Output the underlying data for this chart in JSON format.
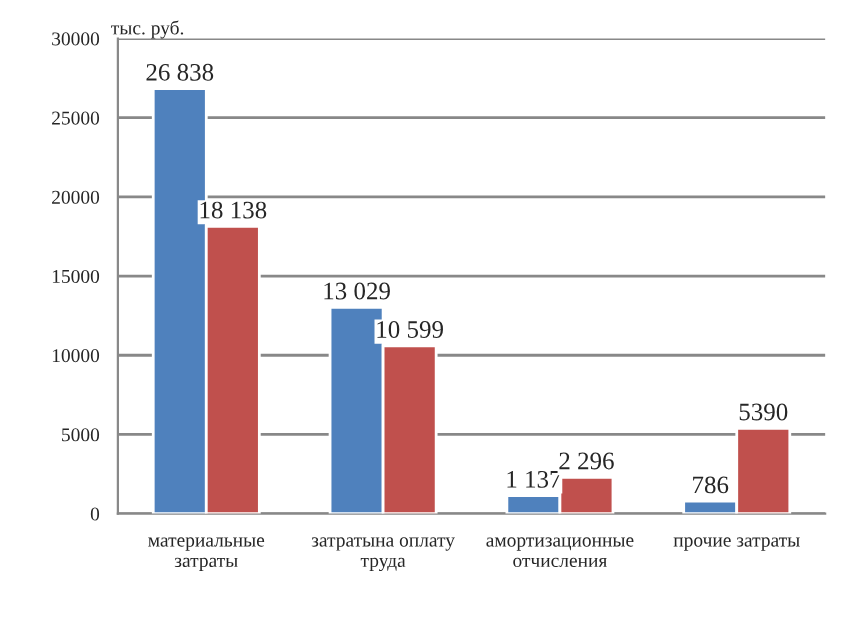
{
  "chart_data": {
    "type": "bar",
    "ylabel": "тыс. руб.",
    "categories": [
      "материальные затраты",
      "затратына оплату труда",
      "амортизационные отчисления",
      "прочие затраты"
    ],
    "series": [
      {
        "color": "#4f81bd",
        "values": [
          26838,
          13029,
          1137,
          786
        ],
        "value_labels": [
          "26 838",
          "13 029",
          "1 137",
          "786"
        ]
      },
      {
        "color": "#c0504d",
        "values": [
          18138,
          10599,
          2296,
          5390
        ],
        "value_labels": [
          "18 138",
          "10 599",
          "2 296",
          "5390"
        ]
      }
    ],
    "ylim": [
      0,
      30000
    ],
    "yticks": [
      0,
      5000,
      10000,
      15000,
      20000,
      25000,
      30000
    ],
    "grid": "y",
    "legend": false
  }
}
